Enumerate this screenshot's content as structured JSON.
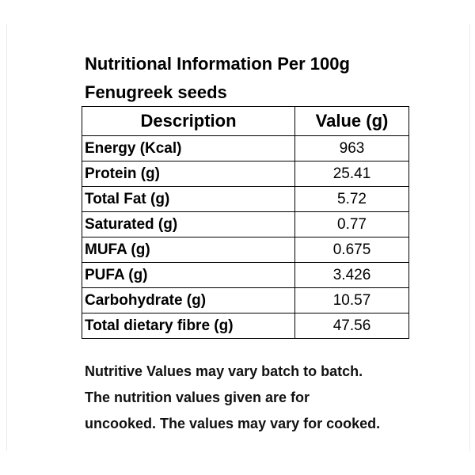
{
  "title_line1": "Nutritional Information Per 100g",
  "title_line2": "Fenugreek seeds",
  "table": {
    "headers": {
      "description": "Description",
      "value": "Value (g)"
    },
    "rows": [
      {
        "label": "Energy (Kcal)",
        "value": "963"
      },
      {
        "label": "Protein (g)",
        "value": "25.41"
      },
      {
        "label": "Total Fat (g)",
        "value": "5.72"
      },
      {
        "label": "Saturated (g)",
        "value": "0.77"
      },
      {
        "label": "MUFA (g)",
        "value": "0.675"
      },
      {
        "label": "PUFA (g)",
        "value": "3.426"
      },
      {
        "label": "Carbohydrate (g)",
        "value": "10.57"
      },
      {
        "label": "Total dietary fibre (g)",
        "value": "47.56"
      }
    ]
  },
  "note": {
    "line1": "Nutritive Values may vary batch to batch.",
    "line2": "The nutrition values given are for",
    "line3": "uncooked. The values may vary for cooked."
  }
}
